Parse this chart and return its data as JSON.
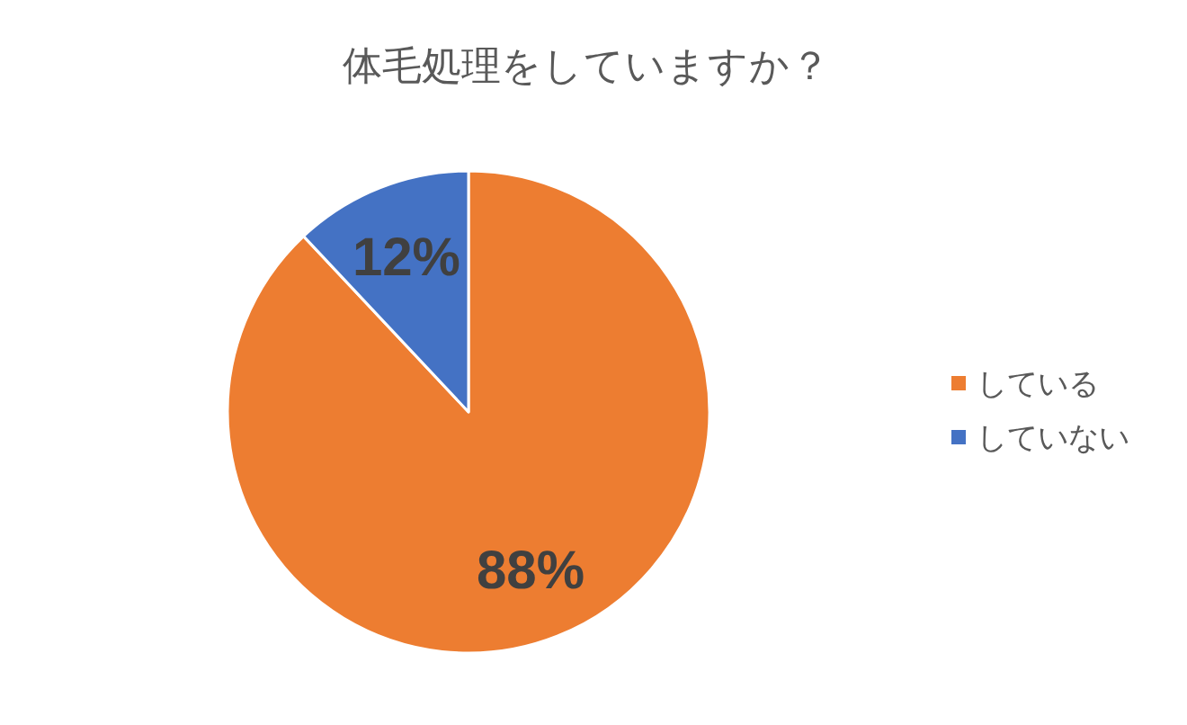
{
  "chart_data": {
    "type": "pie",
    "title": "体毛処理をしていますか？",
    "categories": [
      "している",
      "していない"
    ],
    "values": [
      88,
      12
    ],
    "colors": [
      "#ed7d31",
      "#4472c4"
    ],
    "value_labels": [
      "88%",
      "12%"
    ],
    "legend": "right"
  }
}
